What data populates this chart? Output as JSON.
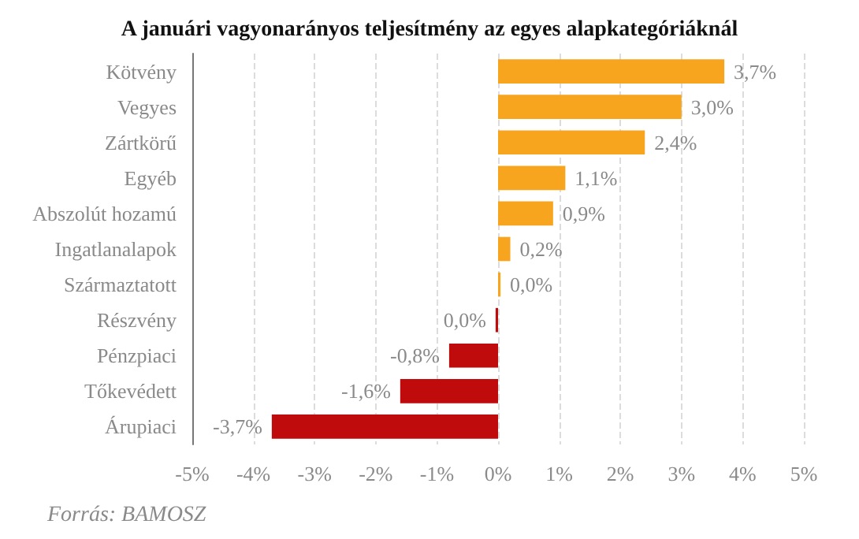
{
  "chart_data": {
    "type": "bar",
    "orientation": "horizontal",
    "title": "A januári vagyonarányos teljesítmény az egyes alapkategóriáknál",
    "categories": [
      "Kötvény",
      "Vegyes",
      "Zártkörű",
      "Egyéb",
      "Abszolút hozamú",
      "Ingatlanalapok",
      "Származtatott",
      "Részvény",
      "Pénzpiaci",
      "Tőkevédett",
      "Árupiaci"
    ],
    "values": [
      3.7,
      3.0,
      2.4,
      1.1,
      0.9,
      0.2,
      0.04,
      -0.04,
      -0.8,
      -1.6,
      -3.7
    ],
    "colors": [
      "#f7a51f",
      "#f7a51f",
      "#f7a51f",
      "#f7a51f",
      "#f7a51f",
      "#f7a51f",
      "#f7a51f",
      "#bf0b0b",
      "#bf0b0b",
      "#bf0b0b",
      "#bf0b0b"
    ],
    "value_labels": [
      "3,7%",
      "3,0%",
      "2,4%",
      "1,1%",
      "0,9%",
      "0,2%",
      "0,0%",
      "0,0%",
      "-0,8%",
      "-1,6%",
      "-3,7%"
    ],
    "xlim": [
      -5,
      5
    ],
    "xticks": [
      {
        "value": -5,
        "label": "-5%"
      },
      {
        "value": -4,
        "label": "-4%"
      },
      {
        "value": -3,
        "label": "-3%"
      },
      {
        "value": -2,
        "label": "-2%"
      },
      {
        "value": -1,
        "label": "-1%"
      },
      {
        "value": 0,
        "label": "0%"
      },
      {
        "value": 1,
        "label": "1%"
      },
      {
        "value": 2,
        "label": "2%"
      },
      {
        "value": 3,
        "label": "3%"
      },
      {
        "value": 4,
        "label": "4%"
      },
      {
        "value": 5,
        "label": "5%"
      }
    ],
    "grid": "x",
    "annotations": [
      "Forrás: BAMOSZ"
    ]
  }
}
